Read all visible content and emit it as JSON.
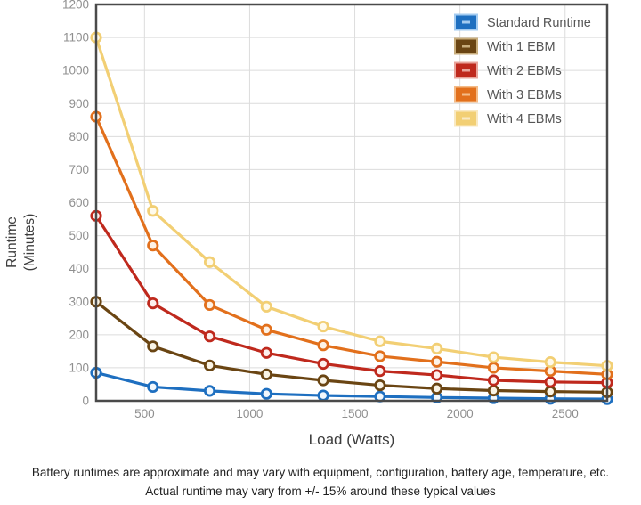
{
  "page": {
    "footnote_line1": "Battery runtimes are approximate and may vary with equipment, configuration, battery age, temperature, etc.",
    "footnote_line2": "Actual runtime may vary from +/- 15% around these typical values"
  },
  "chart_data": {
    "type": "line",
    "title": "",
    "xlabel": "Load (Watts)",
    "ylabel": "Runtime (Minutes)",
    "ylabel_lines": [
      "Runtime",
      "(Minutes)"
    ],
    "xlim": [
      270,
      2700
    ],
    "ylim": [
      0,
      1200
    ],
    "x_ticks": [
      500,
      1000,
      1500,
      2000,
      2500
    ],
    "y_ticks": [
      0,
      100,
      200,
      300,
      400,
      500,
      600,
      700,
      800,
      900,
      1000,
      1100,
      1200
    ],
    "grid": true,
    "legend_position": "top-right",
    "axis_colors": {
      "border": "#4a4a4a",
      "gridline": "#dcdcdc",
      "tick_label": "#8f8f8f",
      "axis_title": "#3c3c3c",
      "legend_text": "#565656"
    },
    "x": [
      270,
      540,
      810,
      1080,
      1350,
      1620,
      1890,
      2160,
      2430,
      2700
    ],
    "series": [
      {
        "name": "Standard Runtime",
        "color": "#1e6fc0",
        "light": "#a3cbf0",
        "marker_fill": "#f2f8fd",
        "values": [
          85,
          42,
          30,
          21,
          16,
          13,
          10,
          8,
          6,
          5
        ]
      },
      {
        "name": "With 1 EBM",
        "color": "#6a4513",
        "light": "#c8ad7c",
        "marker_fill": "#faf4e6",
        "values": [
          300,
          165,
          107,
          80,
          62,
          47,
          37,
          31,
          28,
          26
        ]
      },
      {
        "name": "With 2 EBMs",
        "color": "#bf291d",
        "light": "#e8a49b",
        "marker_fill": "#fdf0ed",
        "values": [
          560,
          295,
          195,
          145,
          112,
          90,
          78,
          62,
          57,
          55
        ]
      },
      {
        "name": "With 3 EBMs",
        "color": "#e2701c",
        "light": "#f4bb87",
        "marker_fill": "#fdf2e6",
        "values": [
          860,
          470,
          290,
          215,
          168,
          135,
          118,
          100,
          90,
          80
        ]
      },
      {
        "name": "With 4 EBMs",
        "color": "#f2cf74",
        "light": "#f9e9c2",
        "marker_fill": "#fefaec",
        "values": [
          1100,
          575,
          420,
          285,
          225,
          180,
          158,
          132,
          117,
          106
        ]
      }
    ]
  }
}
